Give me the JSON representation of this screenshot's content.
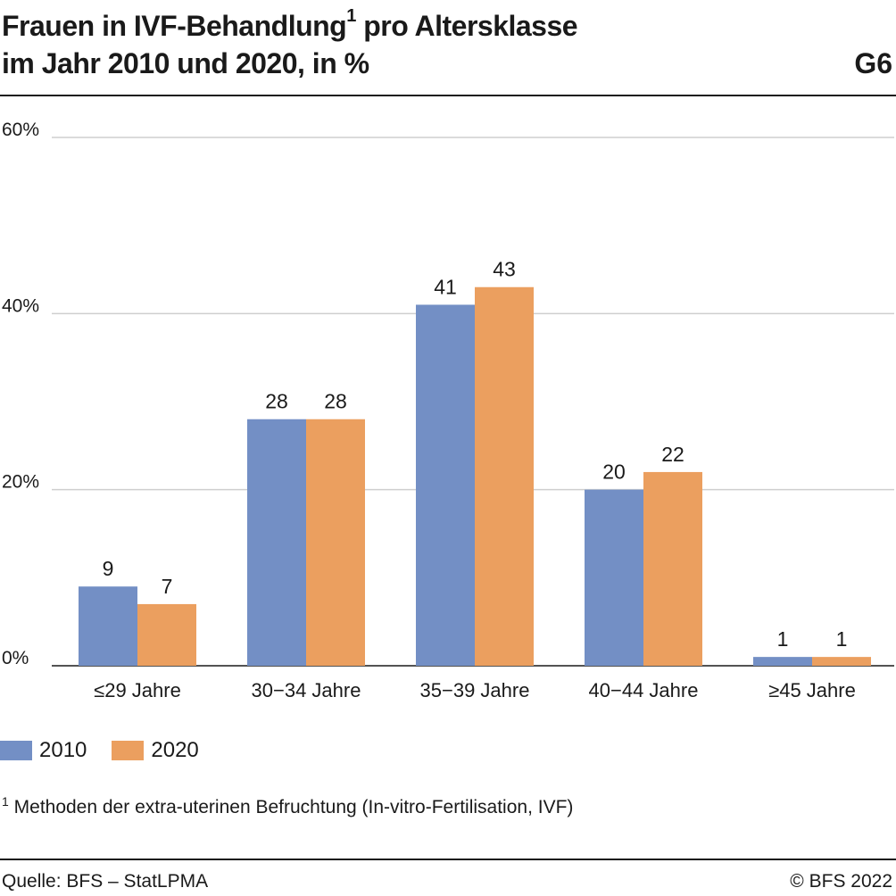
{
  "header": {
    "title_main": "Frauen in IVF-Behandlung",
    "title_sup": "1",
    "title_rest": "pro Altersklasse",
    "title_line2": "im Jahr 2010 und 2020, in %",
    "graphic_number": "G6"
  },
  "legend": [
    {
      "label": "2010",
      "color": "#738fc5"
    },
    {
      "label": "2020",
      "color": "#eb9f5f"
    }
  ],
  "footnote": {
    "marker": "1",
    "text": "Methoden der extra-uterinen Befruchtung (In-vitro-Fertilisation, IVF)"
  },
  "footer": {
    "source": "Quelle: BFS – StatLPMA",
    "copyright": "© BFS 2022"
  },
  "chart_data": {
    "type": "bar",
    "categories": [
      "≤29 Jahre",
      "30−34 Jahre",
      "35−39 Jahre",
      "40−44 Jahre",
      "≥45 Jahre"
    ],
    "series": [
      {
        "name": "2010",
        "values": [
          9,
          28,
          41,
          20,
          1
        ],
        "color": "#738fc5"
      },
      {
        "name": "2020",
        "values": [
          7,
          28,
          43,
          22,
          1
        ],
        "color": "#eb9f5f"
      }
    ],
    "yticks": [
      0,
      20,
      40,
      60
    ],
    "ytick_labels": [
      "0%",
      "20%",
      "40%",
      "60%"
    ],
    "ylim": [
      0,
      60
    ],
    "grid": true,
    "legend_position": "bottom-left"
  }
}
